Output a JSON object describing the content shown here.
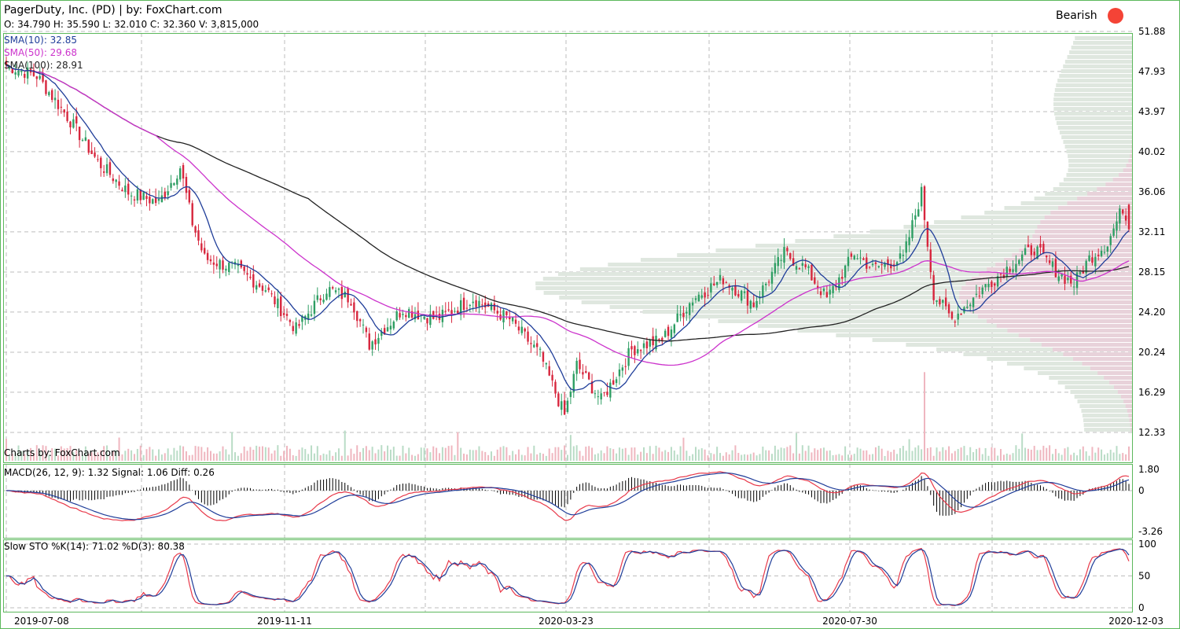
{
  "header": {
    "title": "PagerDuty, Inc. (PD)  |  by: FoxChart.com",
    "ohlcv": "O: 34.790 H: 35.590 L: 32.010 C: 32.360 V: 3,815,000",
    "signal_label": "Bearish",
    "signal_color": "#f44336"
  },
  "indicators": {
    "sma10": "SMA(10): 32.85",
    "sma50": "SMA(50): 29.68",
    "sma100": "SMA(100): 28.91",
    "credit": "Charts by: FoxChart.com",
    "macd": "MACD(26, 12, 9): 1.32 Signal: 1.06 Diff: 0.26",
    "sto": "Slow STO %K(14): 71.02 %D(3): 80.38"
  },
  "colors": {
    "up": "#2e9e63",
    "down": "#d7263d",
    "sma10": "#1f3d99",
    "sma50": "#cc33cc",
    "sma100": "#222222",
    "macd": "#e8394a",
    "signal": "#1f3d99",
    "grid": "#bdbdbd",
    "frame": "#5cb85c",
    "vp_green": "#dfe7df",
    "vp_pink": "#e8d2da"
  },
  "chart_data": [
    {
      "type": "candlestick",
      "title": "PagerDuty, Inc. (PD)",
      "y_ticks": [
        51.88,
        47.93,
        43.97,
        40.02,
        36.06,
        32.11,
        28.15,
        24.2,
        20.24,
        16.29,
        12.33
      ],
      "ylim": [
        12.33,
        51.88
      ],
      "x_ticks": [
        "2019-07-08",
        "2019-11-11",
        "2020-03-23",
        "2020-07-30",
        "2020-12-03"
      ],
      "price_anchors": [
        [
          "2019-07-08",
          48.5
        ],
        [
          "2019-07-22",
          47.5
        ],
        [
          "2019-08-05",
          43.5
        ],
        [
          "2019-08-19",
          39.0
        ],
        [
          "2019-09-02",
          36.0
        ],
        [
          "2019-09-16",
          35.0
        ],
        [
          "2019-09-25",
          38.5
        ],
        [
          "2019-10-01",
          33.0
        ],
        [
          "2019-10-07",
          29.5
        ],
        [
          "2019-10-21",
          28.5
        ],
        [
          "2019-11-04",
          26.5
        ],
        [
          "2019-11-18",
          22.5
        ],
        [
          "2019-12-02",
          26.5
        ],
        [
          "2019-12-12",
          25.5
        ],
        [
          "2019-12-20",
          21.0
        ],
        [
          "2020-01-06",
          24.5
        ],
        [
          "2020-01-21",
          23.5
        ],
        [
          "2020-02-06",
          25.5
        ],
        [
          "2020-02-24",
          23.5
        ],
        [
          "2020-03-09",
          20.0
        ],
        [
          "2020-03-19",
          14.0
        ],
        [
          "2020-03-25",
          19.0
        ],
        [
          "2020-04-06",
          15.5
        ],
        [
          "2020-04-20",
          20.5
        ],
        [
          "2020-05-04",
          21.5
        ],
        [
          "2020-05-18",
          25.5
        ],
        [
          "2020-06-01",
          27.5
        ],
        [
          "2020-06-15",
          25.0
        ],
        [
          "2020-06-29",
          30.0
        ],
        [
          "2020-07-08",
          28.5
        ],
        [
          "2020-07-17",
          25.5
        ],
        [
          "2020-07-30",
          30.0
        ],
        [
          "2020-08-07",
          28.5
        ],
        [
          "2020-08-21",
          29.5
        ],
        [
          "2020-08-31",
          36.0
        ],
        [
          "2020-09-04",
          26.0
        ],
        [
          "2020-09-14",
          23.5
        ],
        [
          "2020-09-28",
          26.5
        ],
        [
          "2020-10-12",
          29.0
        ],
        [
          "2020-10-21",
          30.5
        ],
        [
          "2020-11-02",
          28.0
        ],
        [
          "2020-11-09",
          27.0
        ],
        [
          "2020-11-16",
          29.5
        ],
        [
          "2020-11-24",
          31.0
        ],
        [
          "2020-12-01",
          34.5
        ],
        [
          "2020-12-03",
          32.36
        ]
      ],
      "sma10_last": 32.85,
      "sma50_last": 29.68,
      "sma100_last": 28.91
    },
    {
      "type": "line",
      "name": "MACD(26, 12, 9)",
      "y_ticks": [
        1.8,
        0,
        -3.26
      ],
      "ylim": [
        -3.26,
        1.8
      ],
      "last": {
        "macd": 1.32,
        "signal": 1.06,
        "diff": 0.26
      }
    },
    {
      "type": "line",
      "name": "Slow STO %K(14) %D(3)",
      "y_ticks": [
        100,
        50,
        0
      ],
      "ylim": [
        0,
        100
      ],
      "last": {
        "k": 71.02,
        "d": 80.38
      }
    }
  ]
}
